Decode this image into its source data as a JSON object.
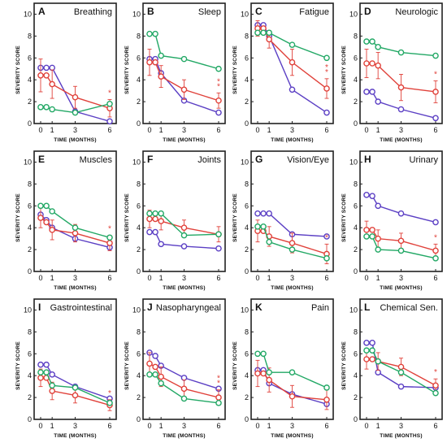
{
  "colors": {
    "purple": "#5b3fc4",
    "red": "#e0413a",
    "green": "#22a865",
    "frame": "#222222"
  },
  "axis": {
    "ylabel": "SEVERITY SCORE",
    "xlabel": "TIME (MONTHS)"
  },
  "chart_data": [
    {
      "type": "line",
      "letter": "A",
      "title": "Breathing",
      "x": [
        0,
        0.5,
        1,
        3,
        6
      ],
      "ylim": [
        0,
        11
      ],
      "yticks": [
        0,
        2,
        4,
        6,
        8,
        10
      ],
      "xticks": [
        0,
        1,
        3,
        6
      ],
      "series": [
        {
          "color": "purple",
          "values": [
            5.1,
            5.1,
            5.1,
            1.1,
            0.2
          ]
        },
        {
          "color": "red",
          "values": [
            4.4,
            4.4,
            3.6,
            2.4,
            1.4
          ],
          "err": [
            1.5,
            1.5,
            1.3,
            1.0,
            0.8
          ]
        },
        {
          "color": "green",
          "values": [
            1.5,
            1.5,
            1.3,
            1.0,
            1.8
          ]
        }
      ],
      "annotation": "*"
    },
    {
      "type": "line",
      "letter": "B",
      "title": "Sleep",
      "x": [
        0,
        0.5,
        1,
        3,
        6
      ],
      "ylim": [
        0,
        11
      ],
      "yticks": [
        0,
        2,
        4,
        6,
        8,
        10
      ],
      "xticks": [
        0,
        1,
        3,
        6
      ],
      "series": [
        {
          "color": "purple",
          "values": [
            5.9,
            5.9,
            4.6,
            2.1,
            1.0
          ]
        },
        {
          "color": "red",
          "values": [
            5.6,
            5.6,
            4.3,
            3.1,
            2.1
          ],
          "err": [
            1.2,
            1.2,
            1.0,
            0.9,
            0.7
          ]
        },
        {
          "color": "green",
          "values": [
            8.2,
            8.2,
            6.2,
            5.9,
            5.0
          ]
        }
      ],
      "annotation": "**"
    },
    {
      "type": "line",
      "letter": "C",
      "title": "Fatigue",
      "x": [
        0,
        0.5,
        1,
        3,
        6
      ],
      "ylim": [
        0,
        11
      ],
      "yticks": [
        0,
        2,
        4,
        6,
        8,
        10
      ],
      "xticks": [
        0,
        1,
        3,
        6
      ],
      "series": [
        {
          "color": "purple",
          "values": [
            9.0,
            9.0,
            8.0,
            3.1,
            1.0
          ]
        },
        {
          "color": "red",
          "values": [
            8.7,
            8.7,
            7.7,
            5.6,
            3.2
          ],
          "err": [
            0.7,
            0.7,
            0.8,
            1.2,
            0.9
          ]
        },
        {
          "color": "green",
          "values": [
            8.3,
            8.3,
            8.3,
            7.2,
            6.0
          ]
        }
      ],
      "annotation": "**"
    },
    {
      "type": "line",
      "letter": "D",
      "title": "Neurologic",
      "x": [
        0,
        0.5,
        1,
        3,
        6
      ],
      "ylim": [
        0,
        11
      ],
      "yticks": [
        0,
        2,
        4,
        6,
        8,
        10
      ],
      "xticks": [
        0,
        1,
        3,
        6
      ],
      "series": [
        {
          "color": "purple",
          "values": [
            2.9,
            2.9,
            2.0,
            1.3,
            0.5
          ]
        },
        {
          "color": "red",
          "values": [
            5.5,
            5.5,
            5.3,
            3.3,
            2.9
          ],
          "err": [
            1.3,
            1.3,
            1.2,
            1.2,
            1.0
          ]
        },
        {
          "color": "green",
          "values": [
            7.5,
            7.5,
            7.0,
            6.5,
            6.2
          ]
        }
      ],
      "annotation": "*"
    },
    {
      "type": "line",
      "letter": "E",
      "title": "Muscles",
      "x": [
        0,
        0.5,
        1,
        3,
        6
      ],
      "ylim": [
        0,
        11
      ],
      "yticks": [
        0,
        2,
        4,
        6,
        8,
        10
      ],
      "xticks": [
        0,
        1,
        3,
        6
      ],
      "series": [
        {
          "color": "purple",
          "values": [
            5.2,
            4.7,
            4.0,
            3.0,
            2.2
          ]
        },
        {
          "color": "red",
          "values": [
            4.9,
            4.5,
            3.8,
            3.5,
            2.6
          ],
          "err": [
            0.9,
            0.9,
            0.9,
            0.8,
            0.7
          ]
        },
        {
          "color": "green",
          "values": [
            6.0,
            6.0,
            5.5,
            4.0,
            3.1
          ]
        }
      ],
      "annotation": "*"
    },
    {
      "type": "line",
      "letter": "F",
      "title": "Joints",
      "x": [
        0,
        0.5,
        1,
        3,
        6
      ],
      "ylim": [
        0,
        11
      ],
      "yticks": [
        0,
        2,
        4,
        6,
        8,
        10
      ],
      "xticks": [
        0,
        1,
        3,
        6
      ],
      "series": [
        {
          "color": "purple",
          "values": [
            3.6,
            3.6,
            2.5,
            2.3,
            2.1
          ]
        },
        {
          "color": "red",
          "values": [
            4.8,
            4.8,
            4.6,
            4.0,
            3.4
          ],
          "err": [
            0.8,
            0.8,
            0.8,
            0.7,
            0.7
          ]
        },
        {
          "color": "green",
          "values": [
            5.3,
            5.3,
            5.3,
            3.3,
            3.4
          ]
        }
      ]
    },
    {
      "type": "line",
      "letter": "G",
      "title": "Vision/Eye",
      "x": [
        0,
        0.5,
        1,
        3,
        6
      ],
      "ylim": [
        0,
        11
      ],
      "yticks": [
        0,
        2,
        4,
        6,
        8,
        10
      ],
      "xticks": [
        0,
        1,
        3,
        6
      ],
      "series": [
        {
          "color": "purple",
          "values": [
            5.3,
            5.3,
            5.3,
            3.4,
            3.2
          ]
        },
        {
          "color": "red",
          "values": [
            3.7,
            3.7,
            3.2,
            2.6,
            1.6
          ],
          "err": [
            1.0,
            1.0,
            0.9,
            0.9,
            0.9
          ]
        },
        {
          "color": "green",
          "values": [
            4.1,
            4.1,
            2.7,
            2.0,
            1.2
          ]
        }
      ],
      "annotation": "*"
    },
    {
      "type": "line",
      "letter": "H",
      "title": "Urinary",
      "x": [
        0,
        0.5,
        1,
        3,
        6
      ],
      "ylim": [
        0,
        11
      ],
      "yticks": [
        0,
        2,
        4,
        6,
        8,
        10
      ],
      "xticks": [
        0,
        1,
        3,
        6
      ],
      "series": [
        {
          "color": "purple",
          "values": [
            7.0,
            6.9,
            6.0,
            5.3,
            4.5
          ]
        },
        {
          "color": "red",
          "values": [
            3.8,
            3.8,
            3.0,
            2.8,
            1.9
          ],
          "err": [
            0.8,
            0.8,
            0.8,
            0.7,
            0.6
          ]
        },
        {
          "color": "green",
          "values": [
            3.2,
            3.2,
            2.0,
            1.9,
            1.2
          ]
        }
      ],
      "annotation": "*"
    },
    {
      "type": "line",
      "letter": "I",
      "title": "Gastrointestinal",
      "x": [
        0,
        0.5,
        1,
        3,
        6
      ],
      "ylim": [
        0,
        11
      ],
      "yticks": [
        0,
        2,
        4,
        6,
        8,
        10
      ],
      "xticks": [
        0,
        1,
        3,
        6
      ],
      "series": [
        {
          "color": "purple",
          "values": [
            5.0,
            5.0,
            4.1,
            3.0,
            1.9
          ]
        },
        {
          "color": "red",
          "values": [
            3.8,
            3.8,
            2.6,
            2.2,
            1.3
          ],
          "err": [
            0.8,
            0.8,
            0.8,
            0.7,
            0.5
          ]
        },
        {
          "color": "green",
          "values": [
            4.3,
            4.3,
            3.1,
            2.9,
            1.5
          ]
        }
      ],
      "annotation": "*"
    },
    {
      "type": "line",
      "letter": "J",
      "title": "Nasopharyngeal",
      "x": [
        0,
        0.5,
        1,
        3,
        6
      ],
      "ylim": [
        0,
        11
      ],
      "yticks": [
        0,
        2,
        4,
        6,
        8,
        10
      ],
      "xticks": [
        0,
        1,
        3,
        6
      ],
      "series": [
        {
          "color": "purple",
          "values": [
            6.1,
            5.8,
            4.9,
            3.8,
            2.8
          ]
        },
        {
          "color": "red",
          "values": [
            5.1,
            4.8,
            3.9,
            2.8,
            2.0
          ],
          "err": [
            1.0,
            1.0,
            0.9,
            0.8,
            0.7
          ]
        },
        {
          "color": "green",
          "values": [
            4.1,
            4.1,
            3.3,
            1.9,
            1.5
          ]
        }
      ],
      "annotation": "**"
    },
    {
      "type": "line",
      "letter": "K",
      "title": "Pain",
      "x": [
        0,
        0.5,
        1,
        3,
        6
      ],
      "ylim": [
        0,
        11
      ],
      "yticks": [
        0,
        2,
        4,
        6,
        8,
        10
      ],
      "xticks": [
        0,
        1,
        3,
        6
      ],
      "series": [
        {
          "color": "purple",
          "values": [
            4.5,
            4.5,
            3.3,
            2.3,
            1.4
          ]
        },
        {
          "color": "red",
          "values": [
            4.2,
            4.2,
            3.6,
            2.1,
            1.8
          ],
          "err": [
            1.2,
            1.2,
            1.1,
            1.0,
            0.9
          ]
        },
        {
          "color": "green",
          "values": [
            6.0,
            6.0,
            4.3,
            4.3,
            2.9
          ]
        }
      ]
    },
    {
      "type": "line",
      "letter": "L",
      "title": "Chemical Sen.",
      "x": [
        0,
        0.5,
        1,
        3,
        6
      ],
      "ylim": [
        0,
        11
      ],
      "yticks": [
        0,
        2,
        4,
        6,
        8,
        10
      ],
      "xticks": [
        0,
        1,
        3,
        6
      ],
      "series": [
        {
          "color": "purple",
          "values": [
            7.0,
            7.0,
            4.3,
            3.0,
            2.9
          ]
        },
        {
          "color": "red",
          "values": [
            5.5,
            5.5,
            5.3,
            4.8,
            3.1
          ],
          "err": [
            0.9,
            0.9,
            0.8,
            0.8,
            0.6
          ]
        },
        {
          "color": "green",
          "values": [
            6.3,
            6.3,
            5.3,
            4.3,
            2.4
          ]
        }
      ],
      "annotation": "*"
    }
  ]
}
